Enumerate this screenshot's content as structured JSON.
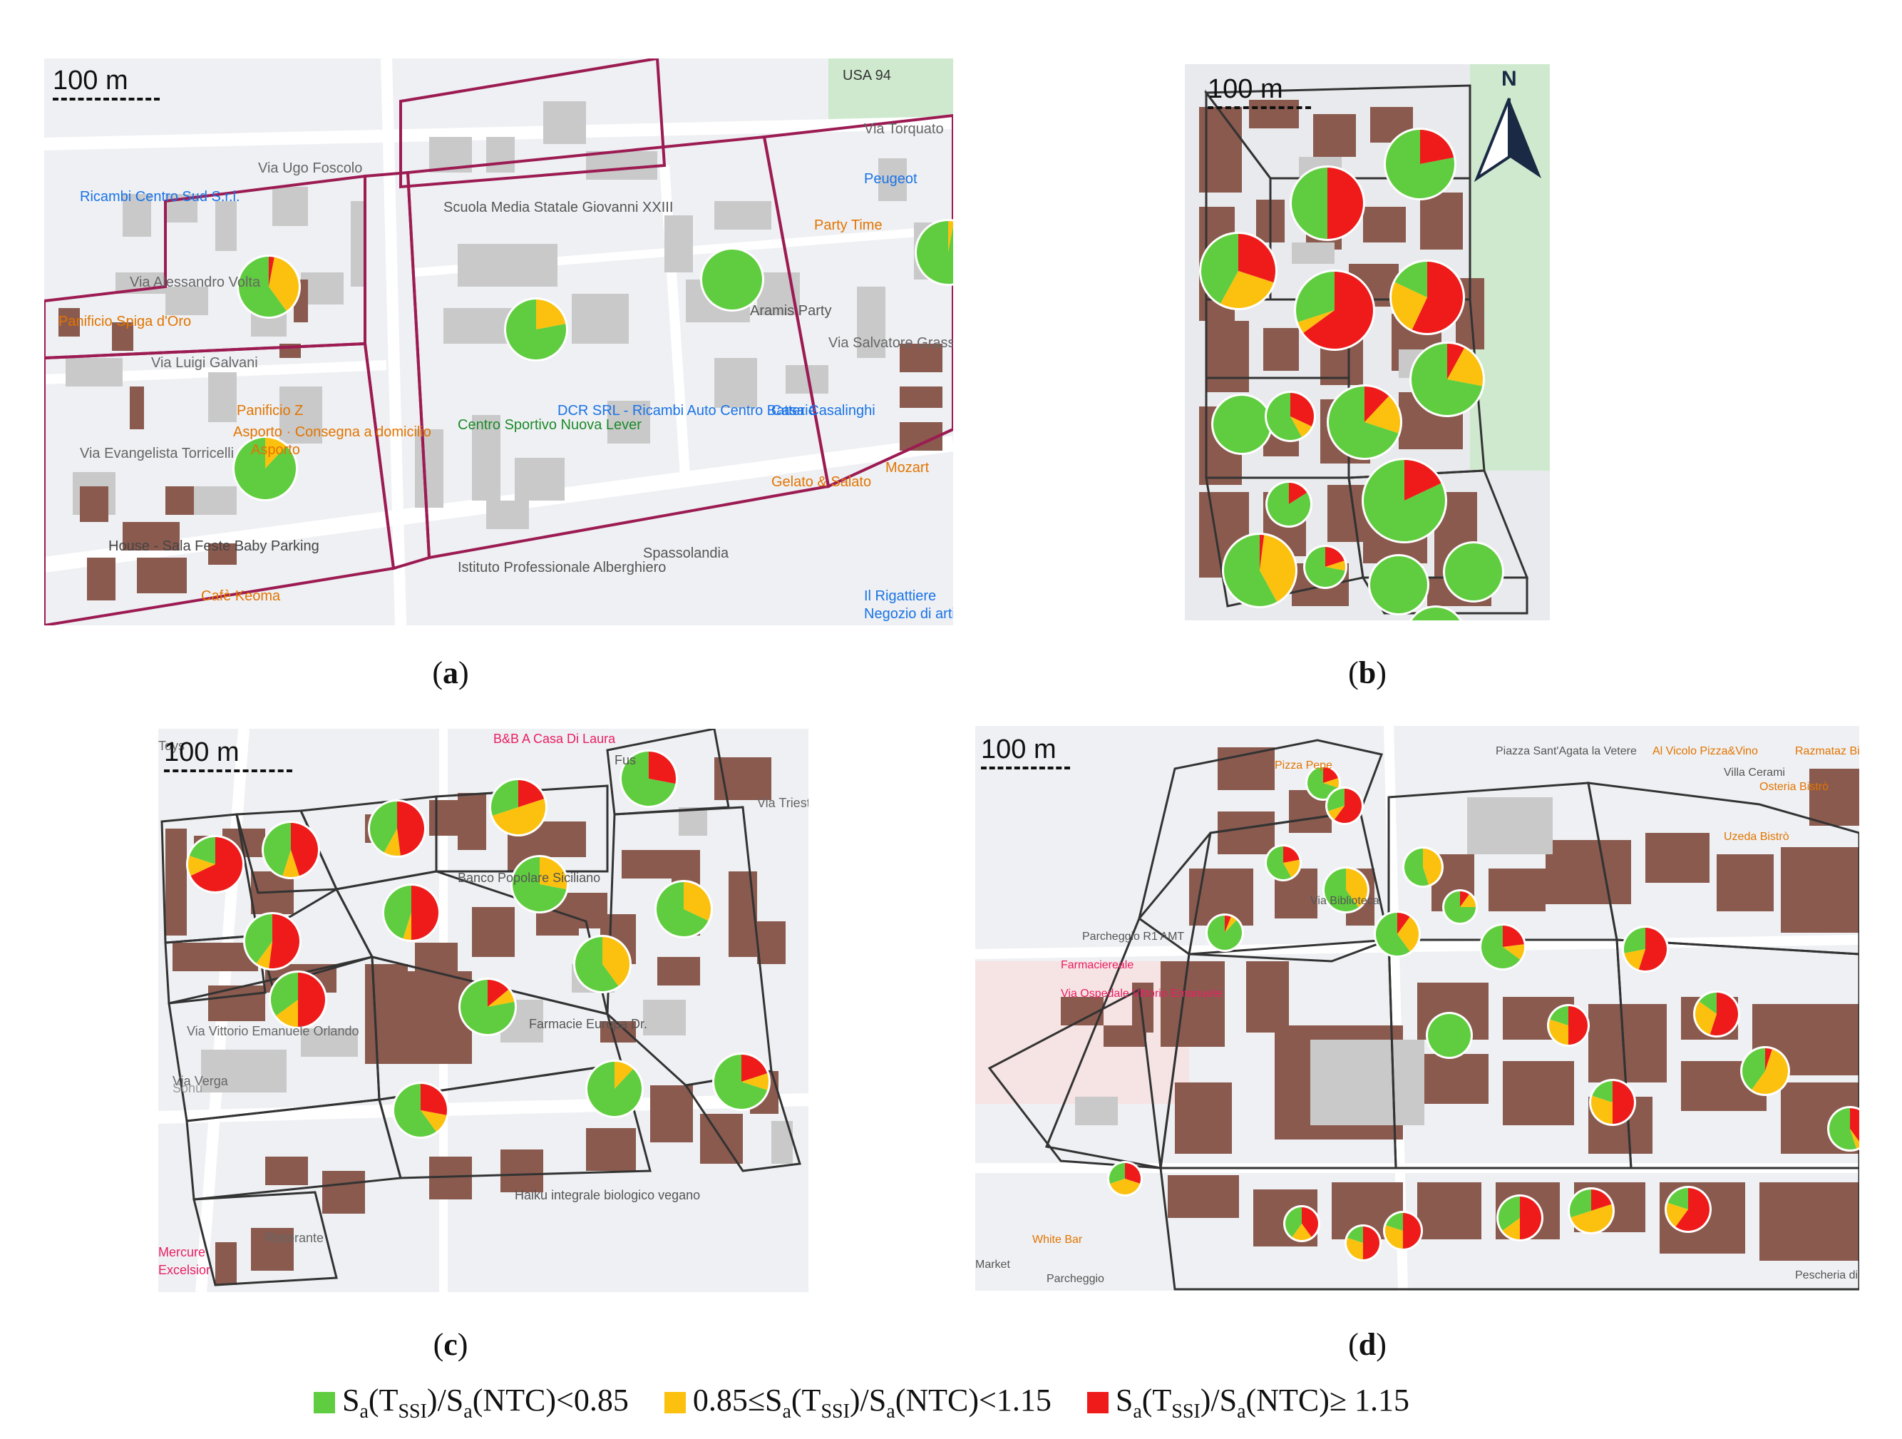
{
  "colors": {
    "green": "#5fcd3f",
    "yellow": "#fcc10e",
    "red": "#ef1b1b",
    "building_brown": "#8a5a4e",
    "building_grey": "#c9c9c9",
    "border_a": "#9c1b52",
    "border_other": "#333333"
  },
  "scale_label": "100 m",
  "north_label": "N",
  "panels": [
    {
      "id": "a",
      "caption": "a",
      "pies": [
        {
          "green": 0.6,
          "yellow": 0.37,
          "red": 0.03
        },
        {
          "green": 0.78,
          "yellow": 0.22,
          "red": 0
        },
        {
          "green": 1,
          "yellow": 0,
          "red": 0
        },
        {
          "green": 0.88,
          "yellow": 0.12,
          "red": 0
        },
        {
          "green": 0.97,
          "yellow": 0.03,
          "red": 0
        }
      ],
      "labels": [
        "Ricambi Centro Sud S.r.l.",
        "Via Ugo Foscolo",
        "Scuola Media Statale Giovanni XXIII",
        "Peugeot",
        "Party Time",
        "Via Alessandro Volta",
        "Via Salvatore Grasso",
        "Via Luigi Galvani",
        "Panificio Spiga d'Oro",
        "Panificio Z",
        "Asporto · Consegna a domicilio",
        "Via Evangelista Torricelli",
        "DCR SRL - Ricambi Auto Centro Batterie",
        "Centro Sportivo Nuova Lever",
        "Casa Casalinghi",
        "Gelato & Salato",
        "Mozart",
        "Spassolandia",
        "Istituto Professionale Alberghiero",
        "House - Sala Feste Baby Parking",
        "Cafè Keoma",
        "Il Rigattiere",
        "Negozio di articoli di seconda mano",
        "USA 94",
        "Via Torquato",
        "Aramis Party",
        "Asporto"
      ]
    },
    {
      "id": "b",
      "caption": "b",
      "pies": [
        {
          "green": 0.5,
          "yellow": 0,
          "red": 0.5
        },
        {
          "green": 0.78,
          "yellow": 0,
          "red": 0.22
        },
        {
          "green": 0.42,
          "yellow": 0.28,
          "red": 0.3
        },
        {
          "green": 0.3,
          "yellow": 0.05,
          "red": 0.65
        },
        {
          "green": 0.18,
          "yellow": 0.25,
          "red": 0.57
        },
        {
          "green": 0.72,
          "yellow": 0.2,
          "red": 0.08
        },
        {
          "green": 1,
          "yellow": 0,
          "red": 0
        },
        {
          "green": 0.58,
          "yellow": 0.1,
          "red": 0.32
        },
        {
          "green": 0.7,
          "yellow": 0.18,
          "red": 0.12
        },
        {
          "green": 0.84,
          "yellow": 0,
          "red": 0.16
        },
        {
          "green": 0.82,
          "yellow": 0,
          "red": 0.18
        },
        {
          "green": 0.58,
          "yellow": 0.4,
          "red": 0.02
        },
        {
          "green": 0.72,
          "yellow": 0.08,
          "red": 0.2
        },
        {
          "green": 1,
          "yellow": 0,
          "red": 0
        },
        {
          "green": 1,
          "yellow": 0,
          "red": 0
        },
        {
          "green": 1,
          "yellow": 0,
          "red": 0
        }
      ]
    },
    {
      "id": "c",
      "caption": "c",
      "pies": [
        {
          "green": 0.2,
          "yellow": 0.12,
          "red": 0.68
        },
        {
          "green": 0.45,
          "yellow": 0.1,
          "red": 0.45
        },
        {
          "green": 0.42,
          "yellow": 0.1,
          "red": 0.48
        },
        {
          "green": 0.3,
          "yellow": 0.5,
          "red": 0.2
        },
        {
          "green": 0.72,
          "yellow": 0,
          "red": 0.28
        },
        {
          "green": 0.4,
          "yellow": 0.08,
          "red": 0.52
        },
        {
          "green": 0.45,
          "yellow": 0.05,
          "red": 0.5
        },
        {
          "green": 0.72,
          "yellow": 0.28,
          "red": 0
        },
        {
          "green": 0.68,
          "yellow": 0.32,
          "red": 0
        },
        {
          "green": 0.35,
          "yellow": 0.15,
          "red": 0.5
        },
        {
          "green": 0.78,
          "yellow": 0.08,
          "red": 0.14
        },
        {
          "green": 0.6,
          "yellow": 0.4,
          "red": 0
        },
        {
          "green": 0.6,
          "yellow": 0.12,
          "red": 0.28
        },
        {
          "green": 0.88,
          "yellow": 0.12,
          "red": 0
        },
        {
          "green": 0.7,
          "yellow": 0.1,
          "red": 0.2
        }
      ],
      "labels": [
        "Toys",
        "B&B A Casa Di Laura",
        "Fus",
        "Via Trieste",
        "Banco Popolare Siciliano",
        "Farmacie Europa Dr.",
        "Haiku integrale biologico vegano",
        "Via Verga",
        "Sonù",
        "Ristorante",
        "Mercure",
        "Excelsior",
        "Via Vittorio Emanuele Orlando"
      ]
    },
    {
      "id": "d",
      "caption": "d",
      "pies": [
        {
          "green": 0.7,
          "yellow": 0.1,
          "red": 0.2
        },
        {
          "green": 0.3,
          "yellow": 0.1,
          "red": 0.6
        },
        {
          "green": 0.58,
          "yellow": 0.2,
          "red": 0.22
        },
        {
          "green": 0.6,
          "yellow": 0.4,
          "red": 0
        },
        {
          "green": 0.55,
          "yellow": 0.45,
          "red": 0
        },
        {
          "green": 0.75,
          "yellow": 0.15,
          "red": 0.1
        },
        {
          "green": 0.6,
          "yellow": 0.3,
          "red": 0.1
        },
        {
          "green": 0.65,
          "yellow": 0.12,
          "red": 0.23
        },
        {
          "green": 0.28,
          "yellow": 0.17,
          "red": 0.55
        },
        {
          "green": 0.88,
          "yellow": 0.06,
          "red": 0.06
        },
        {
          "green": 1,
          "yellow": 0,
          "red": 0
        },
        {
          "green": 0.2,
          "yellow": 0.3,
          "red": 0.5
        },
        {
          "green": 0.15,
          "yellow": 0.3,
          "red": 0.55
        },
        {
          "green": 0.4,
          "yellow": 0.55,
          "red": 0.05
        },
        {
          "green": 0.2,
          "yellow": 0.3,
          "red": 0.5
        },
        {
          "green": 0.55,
          "yellow": 0.05,
          "red": 0.4
        },
        {
          "green": 0.3,
          "yellow": 0.4,
          "red": 0.3
        },
        {
          "green": 0.4,
          "yellow": 0.2,
          "red": 0.4
        },
        {
          "green": 0.2,
          "yellow": 0.3,
          "red": 0.5
        },
        {
          "green": 0.2,
          "yellow": 0.3,
          "red": 0.5
        },
        {
          "green": 0.35,
          "yellow": 0.15,
          "red": 0.5
        },
        {
          "green": 0.3,
          "yellow": 0.5,
          "red": 0.2
        },
        {
          "green": 0.2,
          "yellow": 0.2,
          "red": 0.6
        }
      ],
      "labels": [
        "Pizza Pepe",
        "Piazza Sant'Agata la Vetere",
        "Al Vicolo Pizza&Vino",
        "Villa Cerami",
        "Parcheggio R1 AMT",
        "Via Biblioteca",
        "Farmaciereale",
        "Via Ospedale Vittorio Emanuele",
        "Market",
        "White Bar",
        "Parcheggio",
        "Osteria Bistrò",
        "Pescheria di",
        "Uzeda Bistrò",
        "Razmataz Bistrot"
      ]
    }
  ],
  "legend": [
    {
      "color": "green",
      "parts": [
        "S",
        "a",
        "(T",
        "SSI",
        ")/S",
        "a",
        "(NTC)<0.85"
      ]
    },
    {
      "color": "yellow",
      "parts": [
        "0.85≤S",
        "a",
        "(T",
        "SSI",
        ")/S",
        "a",
        "(NTC)<1.15"
      ]
    },
    {
      "color": "red",
      "parts": [
        "S",
        "a",
        "(T",
        "SSI",
        ")/S",
        "a",
        "(NTC)≥ 1.15"
      ]
    }
  ]
}
